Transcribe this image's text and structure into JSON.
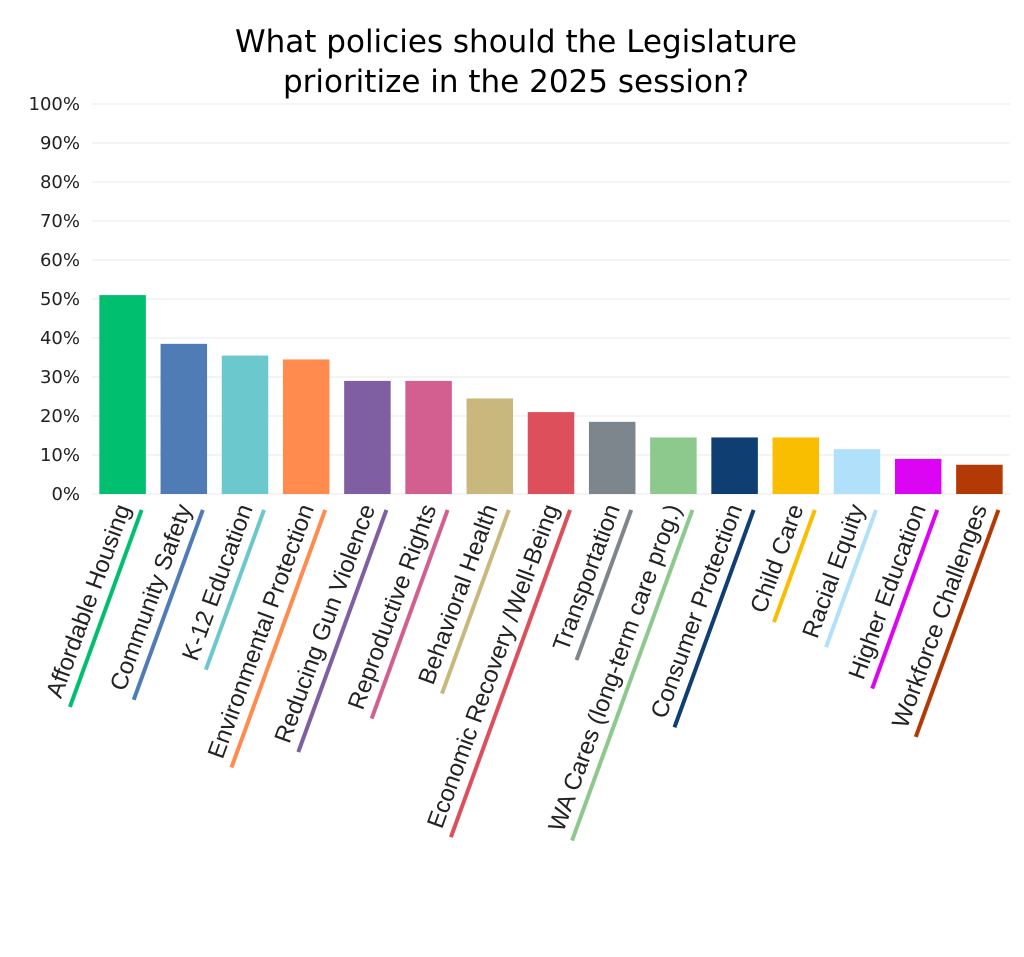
{
  "chart_data": {
    "type": "bar",
    "title_lines": [
      "What policies should the Legislature",
      "prioritize in the 2025 session?"
    ],
    "categories": [
      "Affordable Housing",
      "Community Safety",
      "K-12 Education",
      "Environmental Protection",
      "Reducing Gun Violence",
      "Reproductive Rights",
      "Behavioral Health",
      "Economic Recovery /Well-Being",
      "Transportation",
      "WA Cares (long-term care prog.)",
      "Consumer Protection",
      "Child Care",
      "Racial Equity",
      "Higher Education",
      "Workforce Challenges"
    ],
    "values": [
      51,
      38.5,
      35.5,
      34.5,
      29,
      29,
      24.5,
      21,
      18.5,
      14.5,
      14.5,
      14.5,
      11.5,
      9,
      7.5
    ],
    "colors": [
      "#00BF6F",
      "#507CB6",
      "#6BC8CD",
      "#FF8B4F",
      "#7F5FA2",
      "#D25F90",
      "#C9B87E",
      "#DE4F5C",
      "#7D868C",
      "#8DC98D",
      "#0F3E73",
      "#F9BE00",
      "#B1E1FA",
      "#DC05F3",
      "#B33A05"
    ],
    "yticks": [
      "0%",
      "10%",
      "20%",
      "30%",
      "40%",
      "50%",
      "60%",
      "70%",
      "80%",
      "90%",
      "100%"
    ],
    "ylim": [
      0,
      100
    ],
    "grid": true,
    "xlabel": "",
    "ylabel": ""
  }
}
